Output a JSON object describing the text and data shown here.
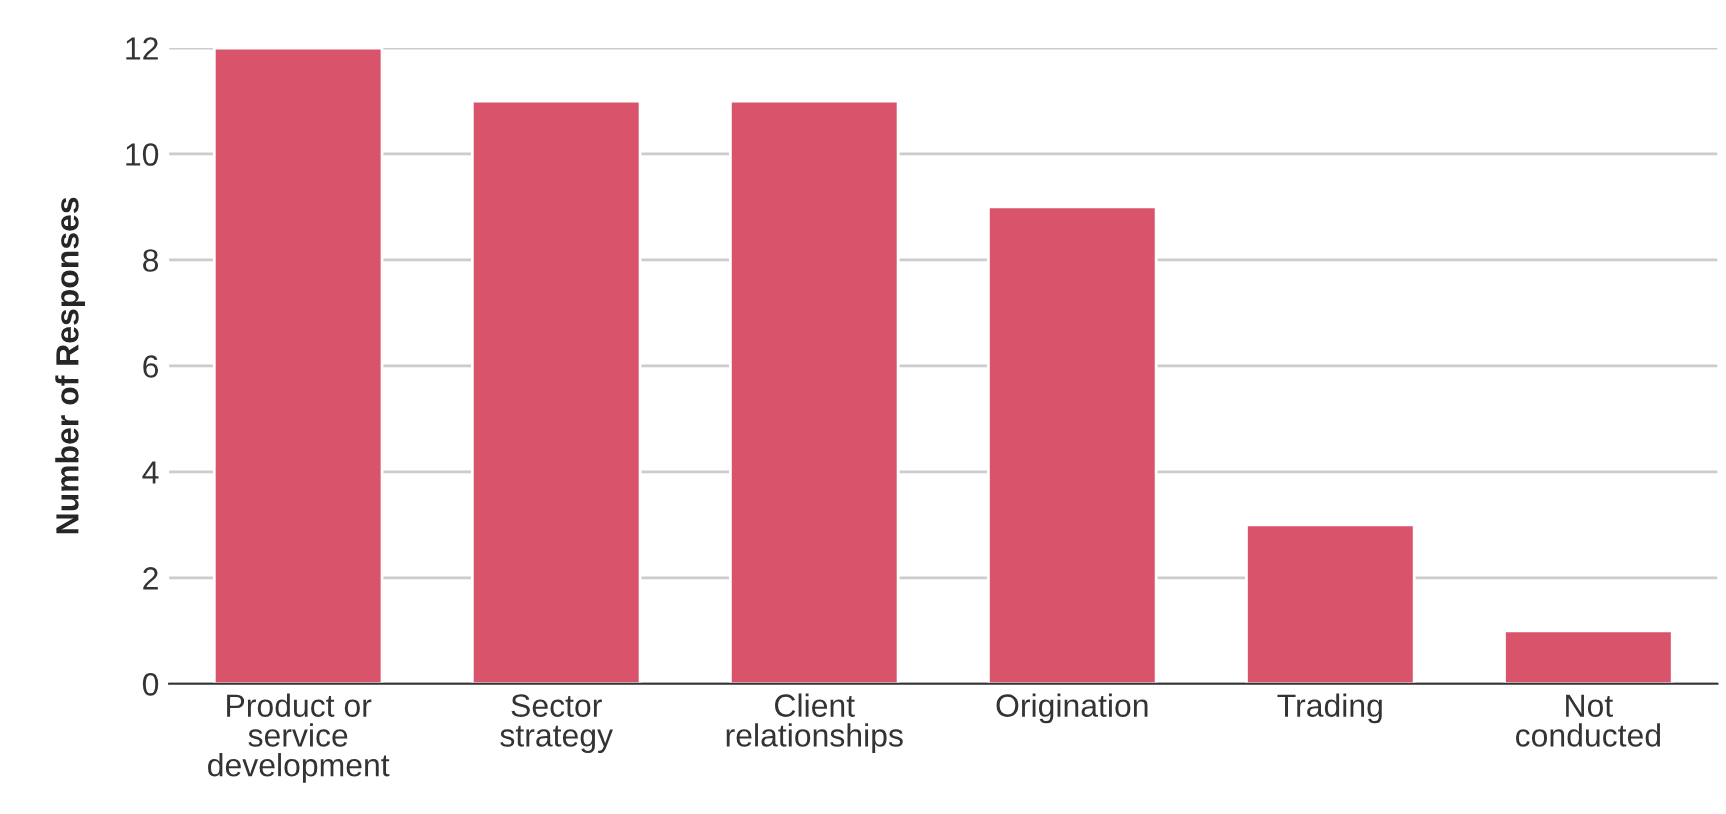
{
  "chart_data": {
    "type": "bar",
    "ylabel": "Number of Responses",
    "categories": [
      "Product or\nservice\ndevelopment",
      "Sector\nstrategy",
      "Client\nrelationships",
      "Origination",
      "Trading",
      "Not\nconducted"
    ],
    "values": [
      12,
      11,
      11,
      9,
      3,
      1
    ],
    "color": "#d9546a",
    "ylim": [
      0,
      12
    ],
    "yticks": [
      0,
      2,
      4,
      6,
      8,
      10,
      12
    ],
    "grid": "y",
    "legend": false
  }
}
